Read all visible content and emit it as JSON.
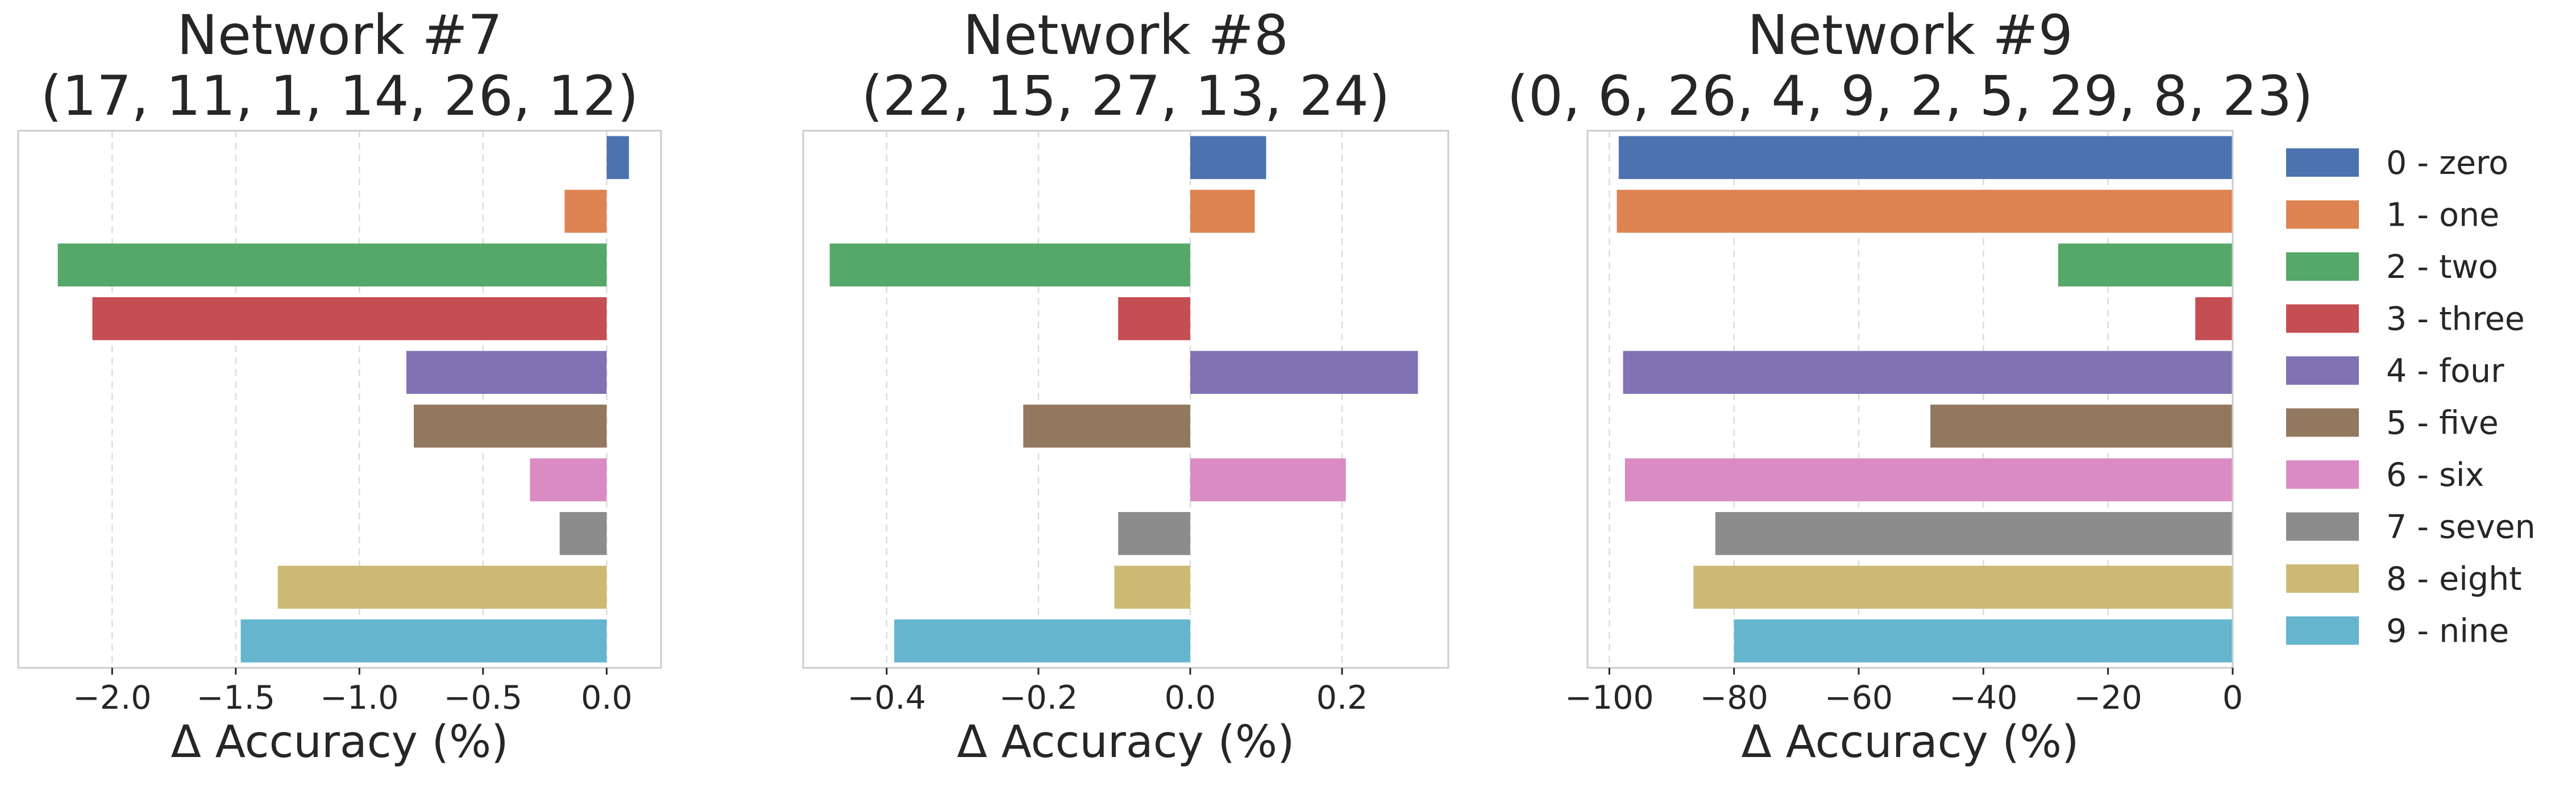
{
  "chart_data": [
    {
      "type": "bar",
      "orientation": "horizontal",
      "title": [
        "Network #7",
        "(17, 11, 1, 14, 26, 12)"
      ],
      "xlabel": "Δ Accuracy (%)",
      "xlim": [
        -2.38,
        0.22
      ],
      "xticks": [
        -2.0,
        -1.5,
        -1.0,
        -0.5,
        0.0
      ],
      "xtick_labels": [
        "−2.0",
        "−1.5",
        "−1.0",
        "−0.5",
        "0.0"
      ],
      "grid": "x dashed",
      "values": [
        0.09,
        -0.17,
        -2.22,
        -2.08,
        -0.81,
        -0.78,
        -0.31,
        -0.19,
        -1.33,
        -1.48
      ]
    },
    {
      "type": "bar",
      "orientation": "horizontal",
      "title": [
        "Network #8",
        "(22, 15, 27, 13, 24)"
      ],
      "xlabel": "Δ Accuracy (%)",
      "xlim": [
        -0.51,
        0.34
      ],
      "xticks": [
        -0.4,
        -0.2,
        0.0,
        0.2
      ],
      "xtick_labels": [
        "−0.4",
        "−0.2",
        "0.0",
        "0.2"
      ],
      "grid": "x dashed",
      "values": [
        0.1,
        0.085,
        -0.475,
        -0.095,
        0.3,
        -0.22,
        0.205,
        -0.095,
        -0.1,
        -0.39
      ]
    },
    {
      "type": "bar",
      "orientation": "horizontal",
      "title": [
        "Network #9",
        "(0, 6, 26, 4, 9, 2, 5, 29, 8, 23)"
      ],
      "xlabel": "Δ Accuracy (%)",
      "xlim": [
        -103.5,
        0
      ],
      "xticks": [
        -100,
        -80,
        -60,
        -40,
        -20,
        0
      ],
      "xtick_labels": [
        "−100",
        "−80",
        "−60",
        "−40",
        "−20",
        "0"
      ],
      "grid": "x dashed",
      "values": [
        -98.5,
        -98.8,
        -28.0,
        -6.0,
        -97.8,
        -48.5,
        -97.5,
        -83.0,
        -86.5,
        -80.0
      ]
    }
  ],
  "legend": {
    "position": "right",
    "entries": [
      {
        "label": "0 - zero",
        "color": "#4c72b0"
      },
      {
        "label": "1 - one",
        "color": "#dd8452"
      },
      {
        "label": "2 - two",
        "color": "#55a868"
      },
      {
        "label": "3 - three",
        "color": "#c44e52"
      },
      {
        "label": "4 - four",
        "color": "#8172b3"
      },
      {
        "label": "5 - five",
        "color": "#937860"
      },
      {
        "label": "6 - six",
        "color": "#da8bc3"
      },
      {
        "label": "7 - seven",
        "color": "#8c8c8c"
      },
      {
        "label": "8 - eight",
        "color": "#ccb974"
      },
      {
        "label": "9 - nine",
        "color": "#64b5cd"
      }
    ]
  }
}
